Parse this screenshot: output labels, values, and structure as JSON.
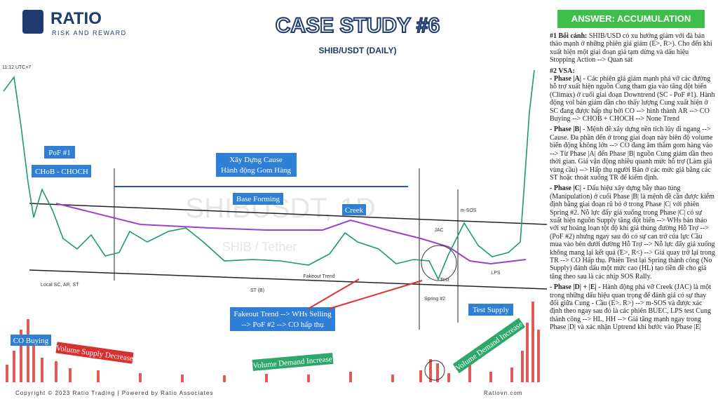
{
  "header": {
    "brand": "RATIO",
    "tagline": "RISK AND REWARD",
    "title": "CASE STUDY #6",
    "subtitle": "SHIB/USDT (DAILY)",
    "answer": "ANSWER: ACCUMULATION"
  },
  "chart": {
    "time_label": "11:12 UTC+7",
    "watermark": "SHIBUSDT, 1D",
    "watermark_sub": "SHIB / Tether",
    "labels": {
      "pof1": "PoF #1",
      "choch": "CHoB - CHOCH",
      "cause1": "Xây Dựng Cause",
      "cause2": "Hành động Gom Hàng",
      "base": "Base Forming",
      "creek": "Creek",
      "jac": "JAC",
      "msos": "m-SOS",
      "lps": "LPS",
      "test": "Test",
      "local": "Local SC, AR, ST",
      "stb": "ST (B)",
      "fakeout": "Fakeout Trend",
      "spring": "Spring #2",
      "fake1": "Fakeout Trend --> WHs Selling",
      "fake2": "--> PoF #2 --> CO hấp thụ",
      "test_supply": "Test Supply",
      "co_buying": "CO Buying",
      "vol_supply": "Volume Supply Decrease",
      "vol_demand1": "Volume Demand Increase",
      "vol_demand2": "Volume Demand Increase"
    }
  },
  "footer": {
    "copyright": "Copyright © 2023 Ratio Trading | Powered by Ratio Associates",
    "site": "Ratiovn.com"
  },
  "analysis": {
    "context": {
      "bold": "#1 Bối cảnh:",
      "text": " SHIB/USD có xu hướng giảm với đà bán tháo mạnh ở những phiên giá giảm (E>, R>). Cho đến khi xuất hiện một giai đoạn giá tạm dừng và dấu hiệu Stopping Action --> Quan sát"
    },
    "vsa_heading": "#2 VSA:",
    "phases": [
      {
        "bold": "- Phase |A|",
        "text": " - Các phiên giá giảm mạnh phá vỡ các đường hỗ trợ xuất hiện nguồn Cung tham gia vào tăng đột biến (Climax) ở cuối giai đoạn Downtrend (SC - PoF #1). Hành động vol bán giảm dần cho thấy lượng Cung xuất hiện ở SC đang được hấp thụ bởi CO --> hình thành AR --> CO Buying --> CHOB + CHOCH --> None Trend"
      },
      {
        "bold": "- Phase |B|",
        "text": " - Mệnh đề xây dựng nền tích lũy đi ngang --> Cause. Đa phần đến ở trong giai đoạn này biên độ volume biến động không lớn --> CO đang âm thầm gom hàng vào --> Từ Phase |A| đến Phase |B| nguồn Cung giảm dần theo thời gian. Giá vận động nhiều quanh mức hỗ trợ (Làm giá vùng cầu) --> Hấp thụ người Bán ở các mức giá bằng các ST hoặc thoát xuống TR để kiểm định."
      },
      {
        "bold": "- Phase |C|",
        "text": " - Dấu hiệu xây dựng bẫy thao túng (Manipulation) ở cuối Phase |B| là mệnh đề cần được kiểm định bằng giai đoạn rũ bỏ ở trong Phase |C| với phiên Spring #2. Nỗ lực đẩy giá xuống trong Phase |C| có sự xuất hiện nguồn Supply tăng đột biến --> WHs bán tháo với sự hoảng loạn tột độ khi giá thủng đường Hỗ Trợ --> (PoF #2) nhưng ngay sau đó có sự can trở của lực Cầu mua vào bên dưới đường Hỗ Trợ --> Nỗ lực đẩy giá xuống không mang lại kết quả (E>, R<) --> Giá quay trở lại trong TR --> CO Hấp thụ. Phiên Test lại Spring thành công (No Supply) đánh dấu một mức cao (HL) tạo tiền đề cho giá tăng theo sau là các nhịp SOS Rally."
      },
      {
        "bold": "- Phase |D| + |E|",
        "text": " - Hành động phá vỡ Creek (JAC) là một trong những dấu hiệu quan trọng để đánh giá có sự thay đổi giữa Cung - Cầu (E>. R>) --> m-SOS và được xác định theo ngay sau đó là các phiên BUEC, LPS test Cung thành công --> HL, HH --> Giá tăng mạnh ngay trong Phase |D| và xác nhận Uptrend khi bước vào Phase |E|"
      }
    ]
  }
}
